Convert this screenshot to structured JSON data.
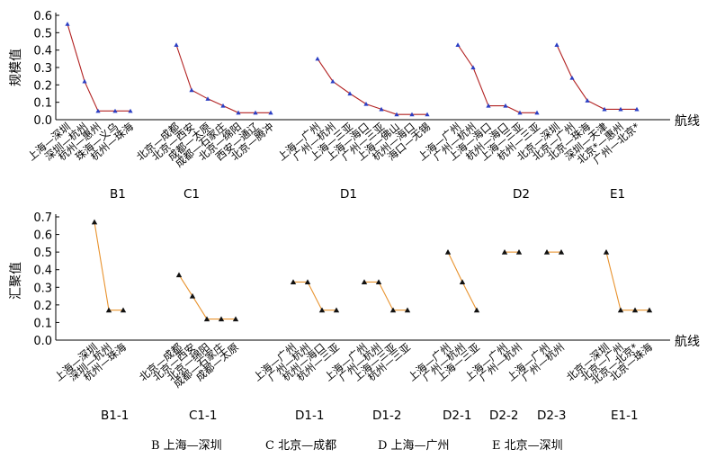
{
  "chart_data": [
    {
      "type": "line",
      "ylabel": "规模值",
      "xlabel": "航线",
      "ylim": [
        0,
        0.6
      ],
      "yticks": [
        "0.0",
        "0.1",
        "0.2",
        "0.3",
        "0.4",
        "0.5",
        "0.6"
      ],
      "line_color": "#b22222",
      "marker_color": "#2b3fc4",
      "groups": [
        {
          "name": "B1",
          "categories": [
            "上海—深圳",
            "深圳—杭州",
            "杭州—惠州",
            "珠海—义乌",
            "杭州—珠海"
          ],
          "values": [
            0.55,
            0.22,
            0.05,
            0.05,
            0.05
          ]
        },
        {
          "name": "C1",
          "categories": [
            "北京—成都",
            "北京—西安",
            "成都—太原",
            "成都—石家庄",
            "北京—绵阳",
            "西安—通辽",
            "北京—腾冲"
          ],
          "values": [
            0.43,
            0.17,
            0.12,
            0.08,
            0.04,
            0.04,
            0.04
          ]
        },
        {
          "name": "D1",
          "categories": [
            "上海—广州",
            "广州—杭州",
            "上海—三亚",
            "上海—海口",
            "广州—三亚",
            "上海—佛山",
            "杭州—海口",
            "海口—无锡"
          ],
          "values": [
            0.35,
            0.22,
            0.15,
            0.09,
            0.06,
            0.03,
            0.03,
            0.03
          ]
        },
        {
          "name": "D2",
          "categories": [
            "上海—广州",
            "广州—杭州",
            "上海—海口",
            "杭州—海口",
            "上海—三亚",
            "杭州—三亚"
          ],
          "values": [
            0.43,
            0.3,
            0.08,
            0.08,
            0.04,
            0.04
          ]
        },
        {
          "name": "E1",
          "categories": [
            "北京—深圳",
            "北京—广州",
            "北京—珠海",
            "深圳—天津",
            "北京*—惠州",
            "广州—北京*"
          ],
          "values": [
            0.43,
            0.24,
            0.11,
            0.06,
            0.06,
            0.06
          ]
        }
      ]
    },
    {
      "type": "line",
      "ylabel": "汇聚值",
      "xlabel": "航线",
      "ylim": [
        0,
        0.7
      ],
      "yticks": [
        "0.0",
        "0.1",
        "0.2",
        "0.3",
        "0.4",
        "0.5",
        "0.6",
        "0.7"
      ],
      "line_color": "#e8922d",
      "marker_color": "#111111",
      "groups": [
        {
          "name": "B1-1",
          "categories": [
            "上海—深圳",
            "深圳—杭州",
            "杭州—珠海"
          ],
          "values": [
            0.67,
            0.17,
            0.17
          ]
        },
        {
          "name": "C1-1",
          "categories": [
            "北京—成都",
            "北京—西安",
            "北京—绵阳",
            "成都—石家庄",
            "成都—太原"
          ],
          "values": [
            0.37,
            0.25,
            0.12,
            0.12,
            0.12
          ]
        },
        {
          "name": "D1-1",
          "categories": [
            "上海—广州",
            "广州—杭州",
            "杭州—海口",
            "杭州—三亚"
          ],
          "values": [
            0.33,
            0.33,
            0.17,
            0.17
          ]
        },
        {
          "name": "D1-2",
          "categories": [
            "上海—广州",
            "广州—杭州",
            "上海—三亚",
            "杭州—三亚"
          ],
          "values": [
            0.33,
            0.33,
            0.17,
            0.17
          ]
        },
        {
          "name": "D2-1",
          "categories": [
            "上海—广州",
            "广州—杭州",
            "上海—三亚"
          ],
          "values": [
            0.5,
            0.33,
            0.17
          ]
        },
        {
          "name": "D2-2",
          "categories": [
            "上海—广州",
            "广州—杭州"
          ],
          "values": [
            0.5,
            0.5
          ]
        },
        {
          "name": "D2-3",
          "categories": [
            "上海—广州",
            "广州—杭州"
          ],
          "values": [
            0.5,
            0.5
          ]
        },
        {
          "name": "E1-1",
          "categories": [
            "北京—深圳",
            "北京—广州",
            "北京—北京*",
            "北京—珠海"
          ],
          "values": [
            0.5,
            0.17,
            0.17,
            0.17
          ]
        }
      ]
    }
  ],
  "legend": [
    "B 上海—深圳",
    "C 北京—成都",
    "D 上海—广州",
    "E 北京—深圳"
  ]
}
